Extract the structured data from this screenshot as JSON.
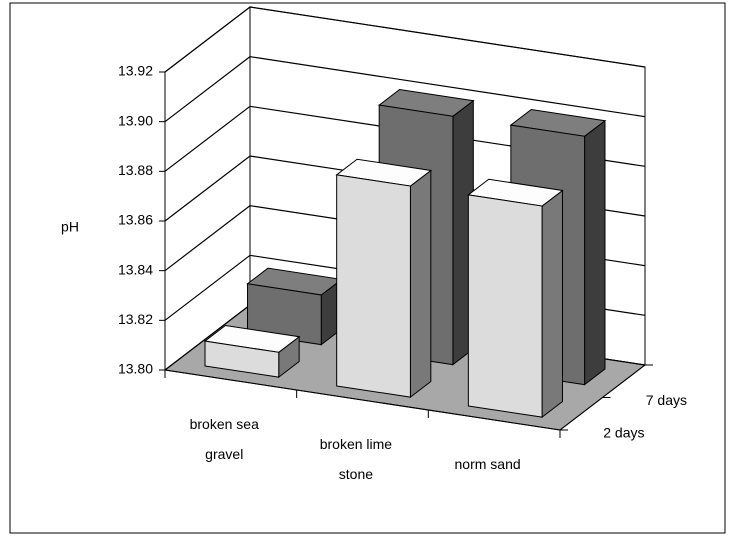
{
  "chart_data": {
    "type": "bar3d",
    "y_label": "pH",
    "categories": [
      "broken sea gravel",
      "broken lime stone",
      "norm sand"
    ],
    "series": [
      {
        "name": "2 days",
        "color": "#dcdcdc",
        "values": [
          13.81,
          13.885,
          13.885
        ]
      },
      {
        "name": "7 days",
        "color": "#6e6e6e",
        "values": [
          13.82,
          13.9,
          13.9
        ]
      }
    ],
    "ylim": [
      13.8,
      13.92
    ],
    "yticks": [
      {
        "value": 13.8,
        "label": "13.80"
      },
      13.82,
      13.84,
      13.86,
      13.88,
      {
        "value": 13.9,
        "label": "13.90"
      },
      13.92
    ],
    "grid": true,
    "floor_color": "#a8a8a8"
  }
}
